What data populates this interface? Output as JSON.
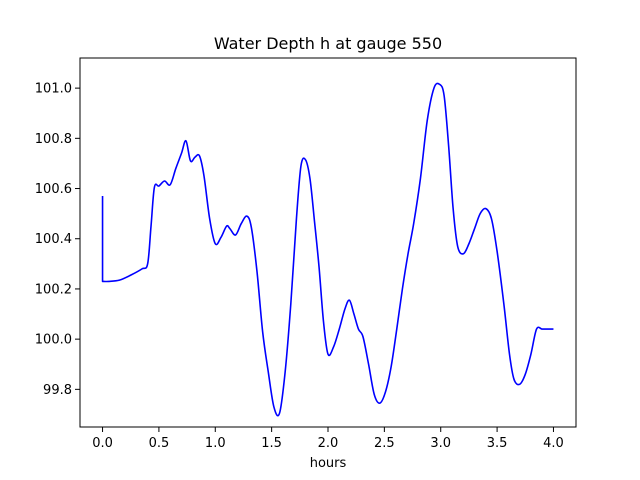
{
  "chart_data": {
    "type": "line",
    "title": "Water Depth h at gauge 550",
    "xlabel": "hours",
    "ylabel": "",
    "xlim": [
      -0.2,
      4.2
    ],
    "ylim": [
      99.65,
      101.12
    ],
    "xticks": [
      0.0,
      0.5,
      1.0,
      1.5,
      2.0,
      2.5,
      3.0,
      3.5,
      4.0
    ],
    "xtick_labels": [
      "0.0",
      "0.5",
      "1.0",
      "1.5",
      "2.0",
      "2.5",
      "3.0",
      "3.5",
      "4.0"
    ],
    "yticks": [
      99.8,
      100.0,
      100.2,
      100.4,
      100.6,
      100.8,
      101.0
    ],
    "ytick_labels": [
      "99.8",
      "100.0",
      "100.2",
      "100.4",
      "100.6",
      "100.8",
      "101.0"
    ],
    "grid": false,
    "legend": "none",
    "series": [
      {
        "color": "#0000ff",
        "x": [
          0.0,
          0.0,
          0.05,
          0.15,
          0.25,
          0.35,
          0.4,
          0.43,
          0.46,
          0.5,
          0.55,
          0.6,
          0.65,
          0.7,
          0.74,
          0.78,
          0.82,
          0.86,
          0.9,
          0.95,
          1.0,
          1.05,
          1.1,
          1.13,
          1.18,
          1.23,
          1.28,
          1.32,
          1.37,
          1.42,
          1.47,
          1.52,
          1.57,
          1.62,
          1.67,
          1.72,
          1.76,
          1.8,
          1.84,
          1.88,
          1.92,
          1.96,
          2.0,
          2.05,
          2.1,
          2.15,
          2.19,
          2.23,
          2.27,
          2.31,
          2.36,
          2.41,
          2.46,
          2.51,
          2.56,
          2.61,
          2.66,
          2.71,
          2.76,
          2.82,
          2.88,
          2.94,
          2.99,
          3.03,
          3.07,
          3.11,
          3.15,
          3.2,
          3.25,
          3.3,
          3.35,
          3.4,
          3.45,
          3.5,
          3.56,
          3.61,
          3.65,
          3.7,
          3.75,
          3.8,
          3.85,
          3.9,
          3.95,
          4.0
        ],
        "y": [
          100.57,
          100.23,
          100.23,
          100.235,
          100.255,
          100.28,
          100.3,
          100.45,
          100.605,
          100.61,
          100.63,
          100.615,
          100.68,
          100.74,
          100.79,
          100.71,
          100.725,
          100.73,
          100.65,
          100.48,
          100.38,
          100.405,
          100.45,
          100.44,
          100.415,
          100.46,
          100.49,
          100.445,
          100.27,
          100.03,
          99.87,
          99.73,
          99.705,
          99.87,
          100.14,
          100.48,
          100.69,
          100.715,
          100.64,
          100.47,
          100.29,
          100.07,
          99.94,
          99.97,
          100.04,
          100.12,
          100.155,
          100.1,
          100.04,
          100.01,
          99.9,
          99.78,
          99.745,
          99.79,
          99.89,
          100.04,
          100.2,
          100.34,
          100.46,
          100.64,
          100.87,
          101.0,
          101.015,
          100.97,
          100.77,
          100.52,
          100.37,
          100.34,
          100.38,
          100.44,
          100.5,
          100.52,
          100.48,
          100.35,
          100.14,
          99.94,
          99.84,
          99.82,
          99.86,
          99.94,
          100.04,
          100.04,
          100.04,
          100.04
        ]
      }
    ]
  }
}
